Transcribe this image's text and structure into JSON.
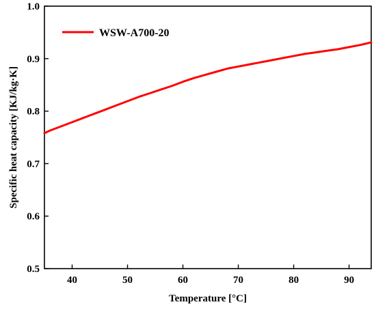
{
  "chart_data": {
    "type": "line",
    "title": "",
    "xlabel": "Temperature [°C]",
    "ylabel": "Specific heat capacity [KJ/kg·K]",
    "xlim": [
      35,
      94
    ],
    "ylim": [
      0.5,
      1.0
    ],
    "xticks": [
      40,
      50,
      60,
      70,
      80,
      90
    ],
    "yticks": [
      0.5,
      0.6,
      0.7,
      0.8,
      0.9,
      1.0
    ],
    "xtick_labels": [
      "40",
      "50",
      "60",
      "70",
      "80",
      "90"
    ],
    "ytick_labels": [
      "0.5",
      "0.6",
      "0.7",
      "0.8",
      "0.9",
      "1.0"
    ],
    "grid": false,
    "legend_position": "top-left",
    "series": [
      {
        "name": "WSW-A700-20",
        "color": "#ff0000",
        "x": [
          35,
          36,
          38,
          40,
          42,
          44,
          46,
          48,
          50,
          52,
          54,
          56,
          58,
          60,
          62,
          64,
          66,
          68,
          70,
          72,
          74,
          76,
          78,
          80,
          82,
          84,
          86,
          88,
          90,
          92,
          94
        ],
        "y": [
          0.758,
          0.763,
          0.771,
          0.779,
          0.787,
          0.795,
          0.803,
          0.811,
          0.819,
          0.827,
          0.834,
          0.841,
          0.848,
          0.856,
          0.863,
          0.869,
          0.875,
          0.881,
          0.885,
          0.889,
          0.893,
          0.897,
          0.901,
          0.905,
          0.909,
          0.912,
          0.915,
          0.918,
          0.922,
          0.926,
          0.931
        ]
      }
    ]
  }
}
